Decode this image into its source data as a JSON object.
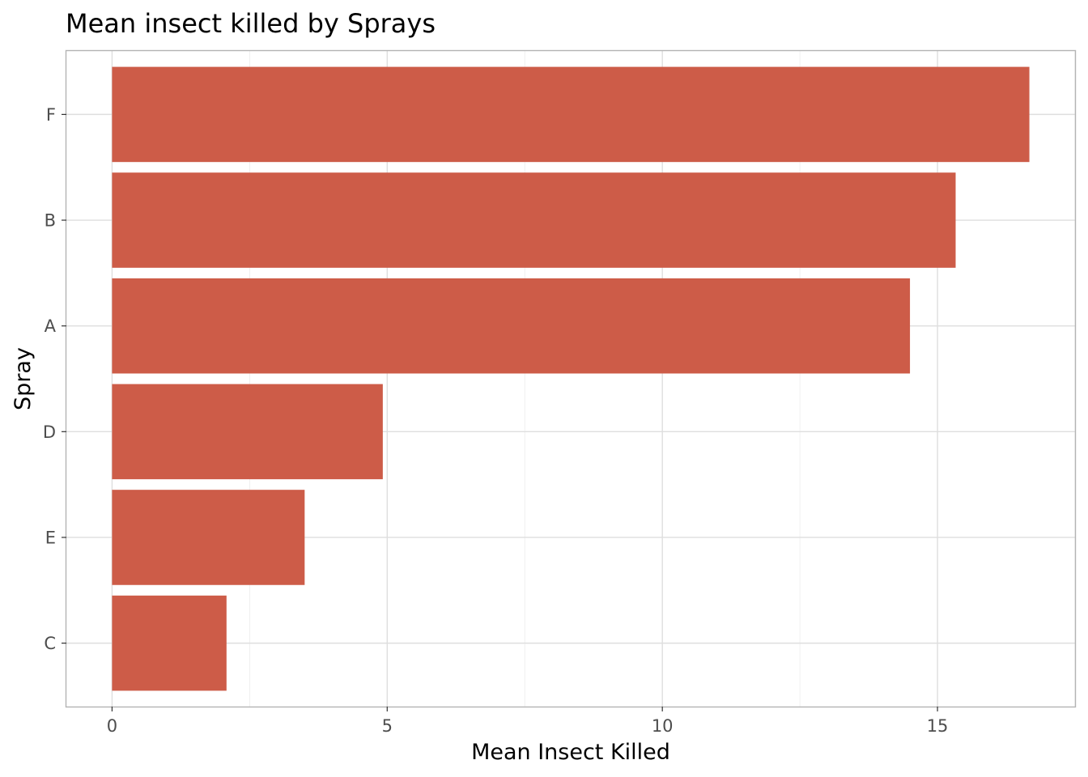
{
  "chart_data": {
    "type": "bar",
    "orientation": "horizontal",
    "title": "Mean insect killed by Sprays",
    "xlabel": "Mean Insect Killed",
    "ylabel": "Spray",
    "categories": [
      "F",
      "B",
      "A",
      "D",
      "E",
      "C"
    ],
    "values": [
      16.67,
      15.33,
      14.5,
      4.92,
      3.5,
      2.08
    ],
    "xlim": [
      -0.83,
      17.5
    ],
    "xticks": [
      0,
      5,
      10,
      15
    ],
    "xtick_labels": [
      "0",
      "5",
      "10",
      "15"
    ],
    "bar_color": "#CD5C48",
    "grid": true,
    "legend": "none"
  }
}
